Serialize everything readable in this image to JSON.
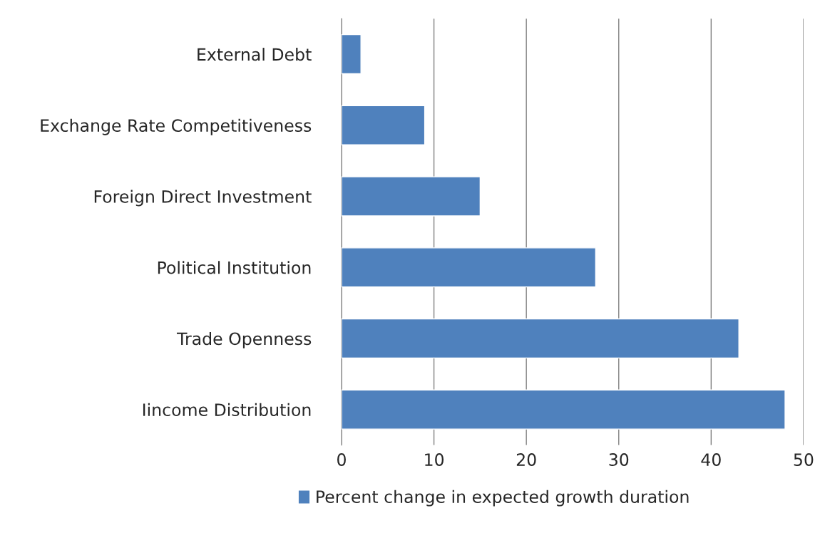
{
  "chart_data": {
    "type": "bar",
    "orientation": "horizontal",
    "categories": [
      "External Debt",
      "Exchange Rate Competitiveness",
      "Foreign Direct Investment",
      "Political Institution",
      "Trade Openness",
      "Iincome Distribution"
    ],
    "series": [
      {
        "name": "Percent change in expected growth duration",
        "color": "#4f81bd",
        "values": [
          2.1,
          9,
          15,
          27.5,
          43,
          48
        ]
      }
    ],
    "xlim": [
      0,
      50
    ],
    "xticks": [
      0,
      10,
      20,
      30,
      40,
      50
    ],
    "grid": "x",
    "legend": "bottom"
  }
}
